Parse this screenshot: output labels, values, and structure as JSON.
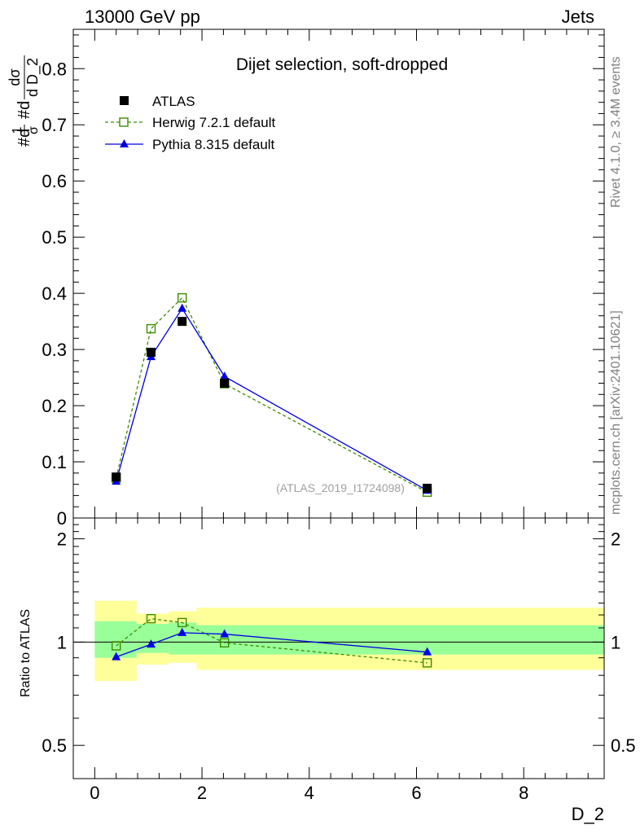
{
  "header": {
    "left_label": "13000 GeV pp",
    "right_label": "Jets"
  },
  "side_labels": {
    "rivet": "Rivet 4.1.0, ≥ 3.4M events",
    "mcplots": "mcplots.cern.ch [arXiv:2401.10621]"
  },
  "chart_data": [
    {
      "type": "scatter",
      "panel": "main",
      "title": "Dijet selection, soft-dropped",
      "analysis_tag": "(ATLAS_2019_I1724098)",
      "ylabel_parts": [
        "#d",
        "1",
        "σ",
        "#d",
        "dσ",
        "d D_2"
      ],
      "xlabel": "D_2",
      "xlim": [
        -0.4,
        9.5
      ],
      "ylim": [
        0.0,
        0.87
      ],
      "yticks": [
        {
          "value": 0.1,
          "label": "0.1"
        },
        {
          "value": 0.2,
          "label": "0.2"
        },
        {
          "value": 0.3,
          "label": "0.3"
        },
        {
          "value": 0.4,
          "label": "0.4"
        },
        {
          "value": 0.5,
          "label": "0.5"
        },
        {
          "value": 0.6,
          "label": "0.6"
        },
        {
          "value": 0.7,
          "label": "0.7"
        },
        {
          "value": 0.8,
          "label": "0.8"
        },
        {
          "value": 0.0,
          "label": "0"
        }
      ],
      "series": [
        {
          "name": "ATLAS",
          "key": "atlas",
          "color": "#000000",
          "marker": "filled-square",
          "x": [
            0.4,
            1.05,
            1.63,
            2.42,
            6.2
          ],
          "y": [
            0.073,
            0.295,
            0.35,
            0.24,
            0.053
          ]
        },
        {
          "name": "Herwig 7.2.1 default",
          "key": "herwig",
          "color": "#3d8c00",
          "marker": "open-square",
          "line": "dashed",
          "x": [
            0.4,
            1.05,
            1.63,
            2.42,
            6.2
          ],
          "y": [
            0.071,
            0.337,
            0.392,
            0.239,
            0.046
          ]
        },
        {
          "name": "Pythia 8.315 default",
          "key": "pythia",
          "color": "#0000e0",
          "marker": "filled-triangle",
          "line": "solid",
          "x": [
            0.4,
            1.05,
            1.63,
            2.42,
            6.2
          ],
          "y": [
            0.065,
            0.287,
            0.373,
            0.252,
            0.049
          ]
        }
      ]
    },
    {
      "type": "scatter",
      "panel": "ratio",
      "ylabel": "Ratio to ATLAS",
      "xlabel": "D_2",
      "xlim": [
        -0.4,
        9.5
      ],
      "ylim_log": [
        0.4,
        2.3
      ],
      "yticks": [
        {
          "value": 0.5,
          "label": "0.5"
        },
        {
          "value": 1.0,
          "label": "1"
        },
        {
          "value": 2.0,
          "label": "2"
        }
      ],
      "xticks": [
        {
          "value": 0,
          "label": "0"
        },
        {
          "value": 2,
          "label": "2"
        },
        {
          "value": 4,
          "label": "4"
        },
        {
          "value": 6,
          "label": "6"
        },
        {
          "value": 8,
          "label": "8"
        }
      ],
      "bands": [
        {
          "xlow": 0.0,
          "xhigh": 0.78,
          "inner": [
            0.9,
            1.15
          ],
          "outer": [
            0.77,
            1.32
          ]
        },
        {
          "xlow": 0.78,
          "xhigh": 1.38,
          "inner": [
            0.93,
            1.13
          ],
          "outer": [
            0.86,
            1.21
          ]
        },
        {
          "xlow": 1.38,
          "xhigh": 1.9,
          "inner": [
            0.92,
            1.14
          ],
          "outer": [
            0.87,
            1.23
          ]
        },
        {
          "xlow": 1.9,
          "xhigh": 9.5,
          "inner": [
            0.92,
            1.12
          ],
          "outer": [
            0.83,
            1.26
          ]
        }
      ],
      "series": [
        {
          "name": "Herwig 7.2.1 default",
          "key": "herwig",
          "color": "#3d8c00",
          "marker": "open-square",
          "line": "dashed",
          "x": [
            0.4,
            1.05,
            1.63,
            2.42,
            6.2
          ],
          "y": [
            0.975,
            1.17,
            1.14,
            0.995,
            0.87
          ]
        },
        {
          "name": "Pythia 8.315 default",
          "key": "pythia",
          "color": "#0000e0",
          "marker": "filled-triangle",
          "line": "solid",
          "x": [
            0.4,
            1.05,
            1.63,
            2.42,
            6.2
          ],
          "y": [
            0.905,
            0.985,
            1.065,
            1.055,
            0.935
          ]
        }
      ]
    }
  ]
}
